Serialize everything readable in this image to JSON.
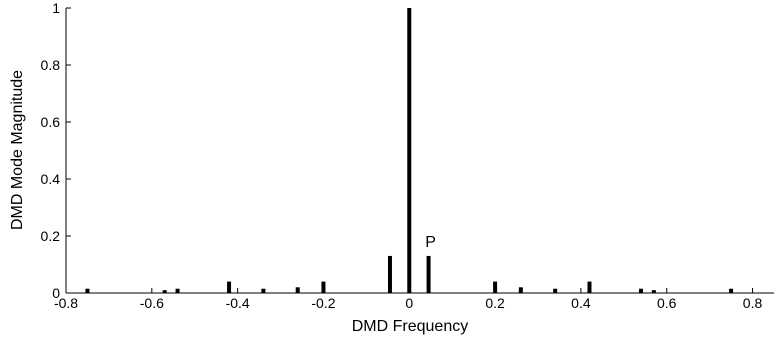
{
  "chart_data": {
    "type": "bar",
    "title": "",
    "xlabel": "DMD Frequency",
    "ylabel": "DMD Mode Magnitude",
    "xlim": [
      -0.8,
      0.85
    ],
    "ylim": [
      0,
      1
    ],
    "grid": false,
    "legend": "none",
    "x_ticks": [
      -0.8,
      -0.6,
      -0.4,
      -0.2,
      0,
      0.2,
      0.4,
      0.6,
      0.8
    ],
    "x_tick_labels": [
      "-0.8",
      "-0.6",
      "-0.4",
      "-0.2",
      "0",
      "0.2",
      "0.4",
      "0.6",
      "0.8"
    ],
    "y_ticks": [
      0,
      0.2,
      0.4,
      0.6,
      0.8,
      1
    ],
    "y_tick_labels": [
      "0",
      "0.2",
      "0.4",
      "0.6",
      "0.8",
      "1"
    ],
    "x": [
      -0.75,
      -0.57,
      -0.54,
      -0.42,
      -0.34,
      -0.26,
      -0.2,
      -0.045,
      0,
      0.045,
      0.2,
      0.26,
      0.34,
      0.42,
      0.54,
      0.57,
      0.75
    ],
    "values": [
      0.015,
      0.01,
      0.015,
      0.04,
      0.015,
      0.02,
      0.04,
      0.13,
      1.0,
      0.13,
      0.04,
      0.02,
      0.015,
      0.04,
      0.015,
      0.01,
      0.015
    ],
    "annotations": [
      {
        "text": "P",
        "x": 0.045,
        "y": 0.13
      }
    ],
    "bar_color": "#000000"
  }
}
